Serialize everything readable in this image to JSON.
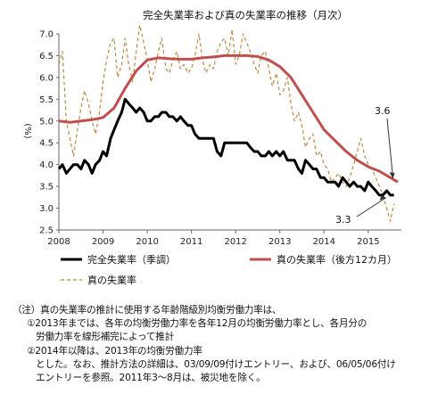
{
  "chart_data": {
    "type": "line",
    "title": "完全失業率および真の失業率の推移（月次）",
    "ylabel": "(%)",
    "xlabel": "",
    "ylim": [
      2.5,
      7.0
    ],
    "yticks": [
      "2.5",
      "3.0",
      "3.5",
      "4.0",
      "4.5",
      "5.0",
      "5.5",
      "6.0",
      "6.5",
      "7.0"
    ],
    "xlim": [
      2008.0,
      2015.75
    ],
    "xticks": [
      "2008",
      "2009",
      "2010",
      "2011",
      "2012",
      "2013",
      "2014",
      "2015"
    ],
    "grid": "none",
    "legend_position": "bottom",
    "annotations": [
      {
        "text": "3.6",
        "x": 2015.6,
        "y": 3.6
      },
      {
        "text": "3.3",
        "x": 2015.4,
        "y": 3.3
      }
    ],
    "series": [
      {
        "name": "完全失業率（季調）",
        "color": "#000000",
        "style": "solid",
        "width": 3,
        "x": [
          2008.0,
          2008.08,
          2008.17,
          2008.25,
          2008.33,
          2008.42,
          2008.5,
          2008.58,
          2008.67,
          2008.75,
          2008.83,
          2008.92,
          2009.0,
          2009.08,
          2009.17,
          2009.25,
          2009.33,
          2009.42,
          2009.5,
          2009.58,
          2009.67,
          2009.75,
          2009.83,
          2009.92,
          2010.0,
          2010.08,
          2010.17,
          2010.25,
          2010.33,
          2010.42,
          2010.5,
          2010.58,
          2010.67,
          2010.75,
          2010.83,
          2010.92,
          2011.0,
          2011.08,
          2011.17,
          2011.25,
          2011.33,
          2011.42,
          2011.5,
          2011.58,
          2011.67,
          2011.75,
          2011.83,
          2011.92,
          2012.0,
          2012.08,
          2012.17,
          2012.25,
          2012.33,
          2012.42,
          2012.5,
          2012.58,
          2012.67,
          2012.75,
          2012.83,
          2012.92,
          2013.0,
          2013.08,
          2013.17,
          2013.25,
          2013.33,
          2013.42,
          2013.5,
          2013.58,
          2013.67,
          2013.75,
          2013.83,
          2013.92,
          2014.0,
          2014.08,
          2014.17,
          2014.25,
          2014.33,
          2014.42,
          2014.5,
          2014.58,
          2014.67,
          2014.75,
          2014.83,
          2014.92,
          2015.0,
          2015.08,
          2015.17,
          2015.25,
          2015.33,
          2015.42,
          2015.5,
          2015.58
        ],
        "values": [
          3.9,
          4.0,
          3.8,
          3.9,
          4.0,
          4.0,
          3.9,
          4.1,
          4.0,
          3.8,
          4.0,
          4.1,
          4.3,
          4.2,
          4.6,
          4.8,
          5.0,
          5.2,
          5.5,
          5.4,
          5.3,
          5.2,
          5.3,
          5.2,
          5.0,
          5.0,
          5.1,
          5.1,
          5.2,
          5.2,
          5.1,
          5.1,
          5.0,
          5.1,
          5.0,
          4.9,
          4.9,
          4.7,
          4.6,
          4.6,
          4.6,
          4.6,
          4.6,
          4.3,
          4.2,
          4.5,
          4.5,
          4.5,
          4.5,
          4.5,
          4.5,
          4.5,
          4.4,
          4.3,
          4.3,
          4.2,
          4.2,
          4.3,
          4.2,
          4.3,
          4.2,
          4.3,
          4.1,
          4.1,
          4.1,
          3.9,
          3.8,
          4.1,
          4.0,
          3.9,
          3.9,
          3.7,
          3.7,
          3.6,
          3.6,
          3.6,
          3.5,
          3.7,
          3.6,
          3.5,
          3.6,
          3.5,
          3.5,
          3.4,
          3.6,
          3.5,
          3.4,
          3.3,
          3.3,
          3.4,
          3.3,
          3.3
        ]
      },
      {
        "name": "真の失業率（後方12カ月）",
        "color": "#c0504d",
        "style": "solid",
        "width": 3,
        "x": [
          2008.0,
          2008.25,
          2008.5,
          2008.75,
          2009.0,
          2009.25,
          2009.5,
          2009.75,
          2010.0,
          2010.25,
          2010.5,
          2010.75,
          2011.0,
          2011.25,
          2011.5,
          2011.75,
          2012.0,
          2012.25,
          2012.5,
          2012.75,
          2013.0,
          2013.25,
          2013.5,
          2013.75,
          2014.0,
          2014.25,
          2014.5,
          2014.75,
          2015.0,
          2015.25,
          2015.5,
          2015.67
        ],
        "values": [
          5.0,
          4.97,
          5.0,
          5.03,
          5.08,
          5.3,
          5.75,
          6.15,
          6.4,
          6.45,
          6.43,
          6.42,
          6.42,
          6.45,
          6.47,
          6.5,
          6.5,
          6.5,
          6.48,
          6.4,
          6.25,
          6.0,
          5.6,
          5.2,
          4.8,
          4.55,
          4.3,
          4.1,
          3.95,
          3.85,
          3.7,
          3.6
        ]
      },
      {
        "name": "真の失業率",
        "color": "#b98a47",
        "style": "dashed",
        "width": 1.2,
        "x": [
          2008.0,
          2008.08,
          2008.17,
          2008.25,
          2008.33,
          2008.42,
          2008.5,
          2008.58,
          2008.67,
          2008.75,
          2008.83,
          2008.92,
          2009.0,
          2009.08,
          2009.17,
          2009.25,
          2009.33,
          2009.42,
          2009.5,
          2009.58,
          2009.67,
          2009.75,
          2009.83,
          2009.92,
          2010.0,
          2010.08,
          2010.17,
          2010.25,
          2010.33,
          2010.42,
          2010.5,
          2010.58,
          2010.67,
          2010.75,
          2010.83,
          2010.92,
          2011.0,
          2011.08,
          2011.17,
          2011.25,
          2011.33,
          2011.42,
          2011.5,
          2011.58,
          2011.67,
          2011.75,
          2011.83,
          2011.92,
          2012.0,
          2012.08,
          2012.17,
          2012.25,
          2012.33,
          2012.42,
          2012.5,
          2012.58,
          2012.67,
          2012.75,
          2012.83,
          2012.92,
          2013.0,
          2013.08,
          2013.17,
          2013.25,
          2013.33,
          2013.42,
          2013.5,
          2013.58,
          2013.67,
          2013.75,
          2013.83,
          2013.92,
          2014.0,
          2014.08,
          2014.17,
          2014.25,
          2014.33,
          2014.42,
          2014.5,
          2014.58,
          2014.67,
          2014.75,
          2014.83,
          2014.92,
          2015.0,
          2015.08,
          2015.17,
          2015.25,
          2015.33,
          2015.42,
          2015.5,
          2015.58
        ],
        "values": [
          6.3,
          6.6,
          5.0,
          4.6,
          4.2,
          4.8,
          5.3,
          5.7,
          5.4,
          5.0,
          4.7,
          5.2,
          5.9,
          6.4,
          6.8,
          6.9,
          6.0,
          6.3,
          6.9,
          6.3,
          5.9,
          6.6,
          7.2,
          6.8,
          6.4,
          5.9,
          6.2,
          6.6,
          6.9,
          6.2,
          6.1,
          6.4,
          6.6,
          6.2,
          6.3,
          6.1,
          6.2,
          6.5,
          7.0,
          6.4,
          6.1,
          6.3,
          6.2,
          6.6,
          6.8,
          6.9,
          6.5,
          7.1,
          6.3,
          6.5,
          7.0,
          6.8,
          6.6,
          6.3,
          6.1,
          6.5,
          6.6,
          6.2,
          5.8,
          6.1,
          5.6,
          5.7,
          6.0,
          5.4,
          5.0,
          5.2,
          4.9,
          4.4,
          4.6,
          4.7,
          4.2,
          4.3,
          4.0,
          3.9,
          3.6,
          3.7,
          3.8,
          3.6,
          3.5,
          3.7,
          4.0,
          4.3,
          4.6,
          4.2,
          4.0,
          3.9,
          3.7,
          3.5,
          3.3,
          3.0,
          2.7,
          3.1
        ]
      }
    ]
  },
  "notes": {
    "line1": "（注）真の失業率の推計に使用する年齢階級別均衡労働力率は、",
    "line2": "①2013年までは、各年の均衡労働力率を各年12月の均衡労働力率とし、各月分の",
    "line3": "労働力率を線形補完によって推計",
    "line4": "②2014年以降は、2013年の均衡労働力率",
    "line5": "とした。なお、推計方法の詳細は、03/09/09付けエントリー、および、06/05/06付け",
    "line6": "エントリーを参照。2011年3～8月は、被災地を除く。"
  }
}
